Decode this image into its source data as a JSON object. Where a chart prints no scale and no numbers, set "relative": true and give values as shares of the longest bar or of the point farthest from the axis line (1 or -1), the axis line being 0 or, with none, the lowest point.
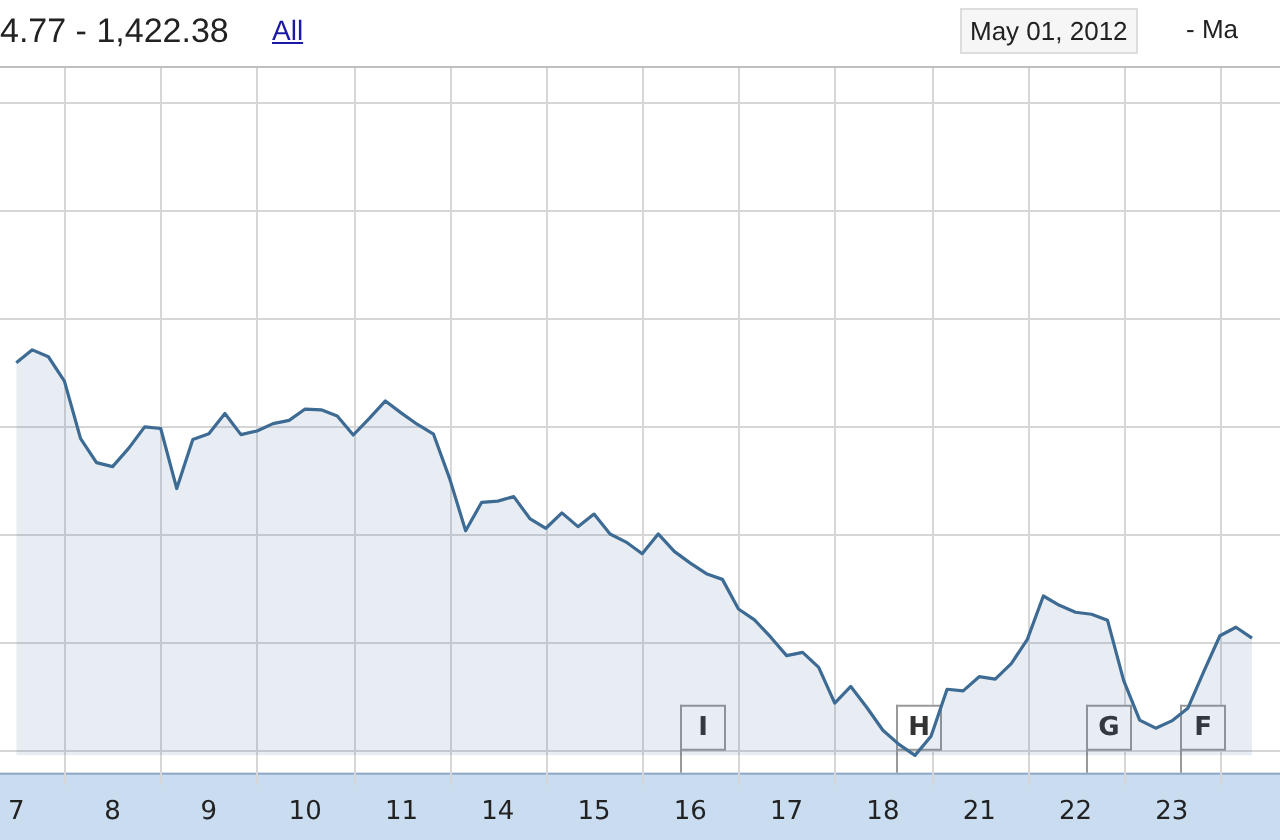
{
  "chart_data": {
    "type": "area",
    "title": "4.77 - 1,422.38",
    "relative": true,
    "grid": true,
    "legend": false,
    "categories": [
      "7",
      null,
      null,
      null,
      null,
      null,
      "8",
      null,
      null,
      null,
      null,
      null,
      "9",
      null,
      null,
      null,
      null,
      null,
      "10",
      null,
      null,
      null,
      null,
      null,
      "11",
      null,
      null,
      null,
      null,
      null,
      "14",
      null,
      null,
      null,
      null,
      null,
      "15",
      null,
      null,
      null,
      null,
      null,
      "16",
      null,
      null,
      null,
      null,
      null,
      "17",
      null,
      null,
      null,
      null,
      null,
      "18",
      null,
      null,
      null,
      null,
      null,
      "21",
      null,
      null,
      null,
      null,
      null,
      "22",
      null,
      null,
      null,
      null,
      null,
      "23",
      null,
      null,
      null,
      null,
      null
    ],
    "annotations": [
      "All",
      "May 01, 2012",
      "- Ma",
      "I",
      "H",
      "G",
      "F"
    ],
    "series": [
      {
        "color": "#3d6b94",
        "values": [
          0.968,
          1,
          0.983,
          0.923,
          0.782,
          0.722,
          0.712,
          0.757,
          0.81,
          0.806,
          0.658,
          0.779,
          0.793,
          0.843,
          0.791,
          0.8,
          0.818,
          0.826,
          0.854,
          0.852,
          0.837,
          0.79,
          0.831,
          0.874,
          0.844,
          0.816,
          0.792,
          0.683,
          0.554,
          0.624,
          0.627,
          0.638,
          0.584,
          0.56,
          0.598,
          0.564,
          0.595,
          0.546,
          0.526,
          0.497,
          0.546,
          0.503,
          0.474,
          0.448,
          0.434,
          0.361,
          0.334,
          0.292,
          0.246,
          0.254,
          0.217,
          0.129,
          0.17,
          0.118,
          0.062,
          0.027,
          0,
          0.047,
          0.163,
          0.159,
          0.194,
          0.188,
          0.226,
          0.286,
          0.393,
          0.37,
          0.353,
          0.348,
          0.333,
          0.185,
          0.087,
          0.067,
          0.085,
          0.116,
          0.207,
          0.295,
          0.316,
          0.289
        ]
      }
    ]
  }
}
